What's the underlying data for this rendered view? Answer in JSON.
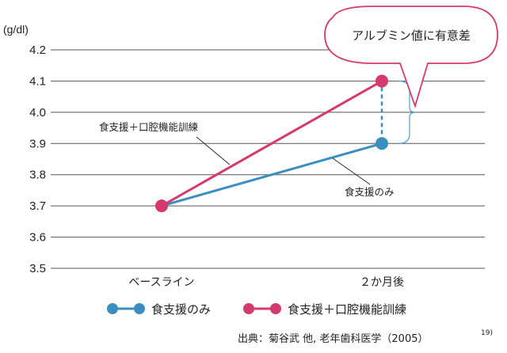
{
  "chart_data": {
    "type": "line",
    "ylabel": "(g/dl)",
    "ylim": [
      3.5,
      4.2
    ],
    "yticks": [
      "4.2",
      "4.1",
      "4.0",
      "3.9",
      "3.8",
      "3.7",
      "3.6",
      "3.5"
    ],
    "ytick_values": [
      4.2,
      4.1,
      4.0,
      3.9,
      3.8,
      3.7,
      3.6,
      3.5
    ],
    "categories": [
      "ベースライン",
      "２か月後"
    ],
    "grid": true,
    "legend_position": "bottom",
    "series": [
      {
        "name": "食支援のみ",
        "values": [
          3.7,
          3.9
        ],
        "color": "#3a8fc0"
      },
      {
        "name": "食支援＋口腔機能訓練",
        "values": [
          3.7,
          4.1
        ],
        "color": "#d43a6e"
      }
    ],
    "annotations": {
      "significance": "アルブミン値に有意差",
      "line_label_pink": "食支援＋口腔機能訓練",
      "line_label_blue": "食支援のみ"
    }
  },
  "source": {
    "text": "出典：菊谷武 他, 老年歯科医学（2005）",
    "ref": "19)"
  }
}
